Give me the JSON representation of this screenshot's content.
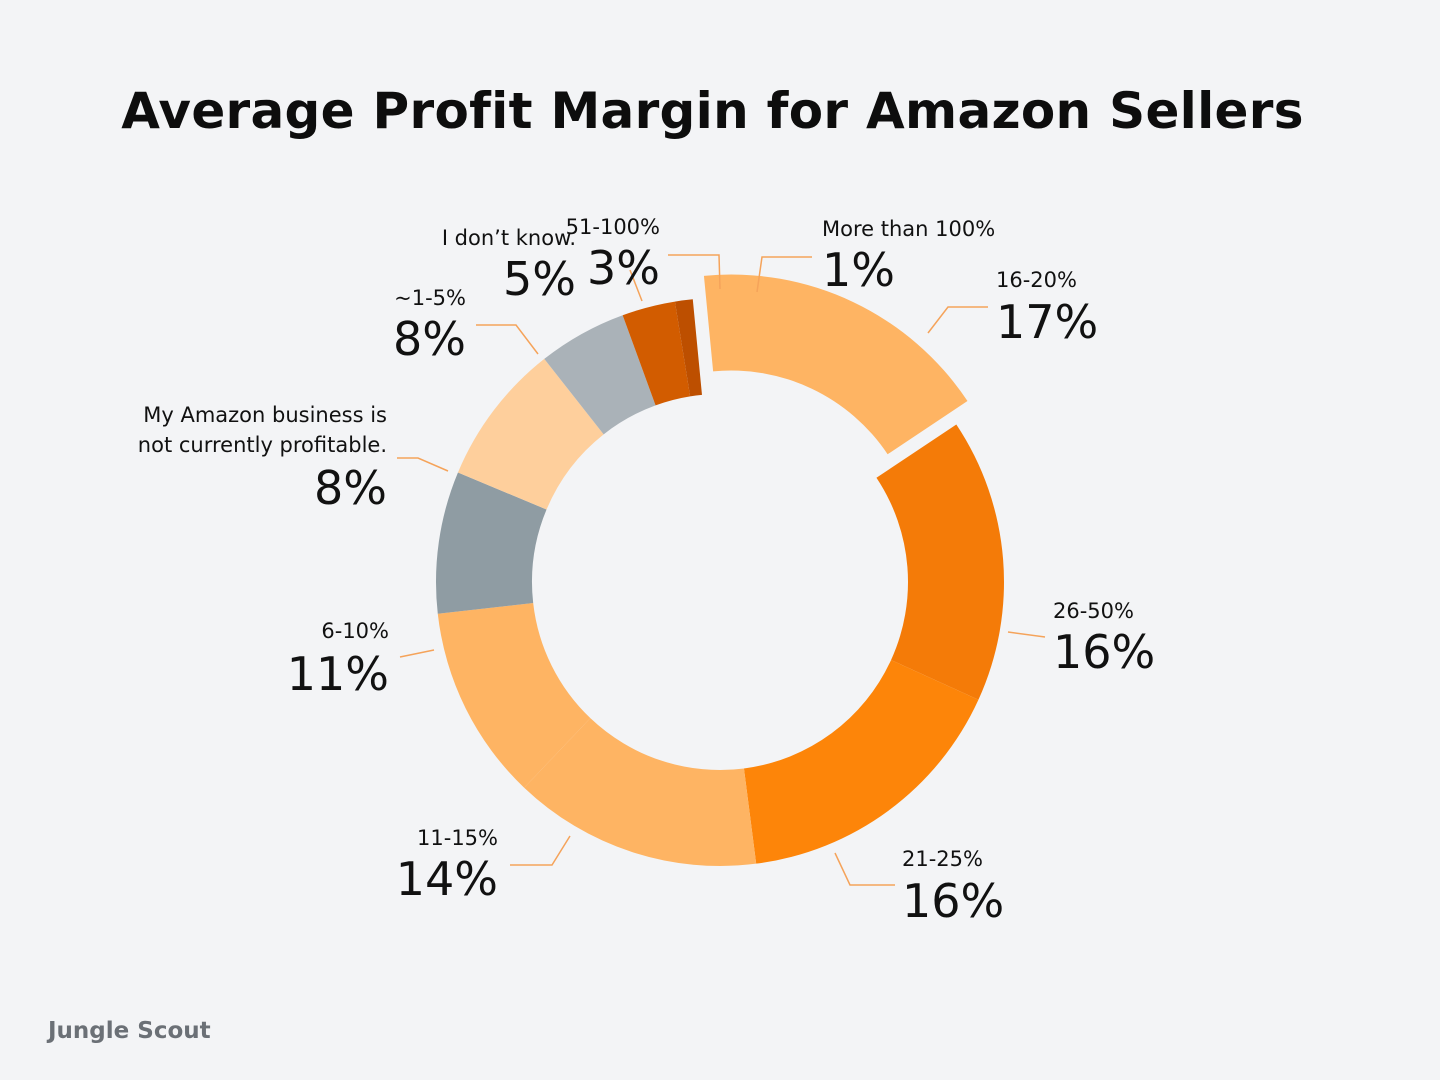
{
  "title": "Average Profit Margin for Amazon Sellers",
  "brand": "Jungle Scout",
  "chart_data": {
    "type": "pie",
    "title": "Average Profit Margin for Amazon Sellers",
    "slices": [
      {
        "label": "16-20%",
        "value": 17,
        "value_label": "17%",
        "color": "#feb463",
        "exploded": true
      },
      {
        "label": "26-50%",
        "value": 16,
        "value_label": "16%",
        "color": "#f47b08"
      },
      {
        "label": "21-25%",
        "value": 16,
        "value_label": "16%",
        "color": "#fd8509"
      },
      {
        "label": "11-15%",
        "value": 14,
        "value_label": "14%",
        "color": "#feb463"
      },
      {
        "label": "6-10%",
        "value": 11,
        "value_label": "11%",
        "color": "#feb463"
      },
      {
        "label": "My Amazon business is not currently profitable.",
        "value": 8,
        "value_label": "8%",
        "color": "#8f9ca3"
      },
      {
        "label": "~1-5%",
        "value": 8,
        "value_label": "8%",
        "color": "#fecf9c"
      },
      {
        "label": "I don’t know.",
        "value": 5,
        "value_label": "5%",
        "color": "#aab2b8"
      },
      {
        "label": "51-100%",
        "value": 3,
        "value_label": "3%",
        "color": "#d25c00"
      },
      {
        "label": "More than 100%",
        "value": 1,
        "value_label": "1%",
        "color": "#bd4f00"
      }
    ],
    "leader_color": "#f5a35a"
  }
}
